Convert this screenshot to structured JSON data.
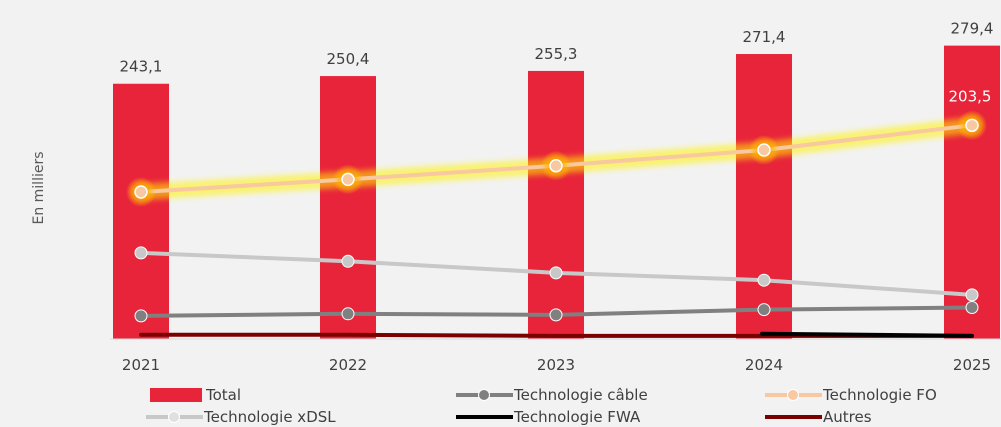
{
  "chart_data": {
    "type": "bar",
    "categories": [
      "2021",
      "2022",
      "2023",
      "2024",
      "2025"
    ],
    "ylabel": "En milliers",
    "ylim": [
      0,
      300
    ],
    "grid": false,
    "legend_position": "bottom",
    "bar_series": {
      "name": "Total",
      "values": [
        243.1,
        250.4,
        255.3,
        271.4,
        279.4
      ],
      "value_labels": [
        "243,1",
        "250,4",
        "255,3",
        "271,4",
        "279,4"
      ],
      "color": "#e8243a"
    },
    "line_series": [
      {
        "name": "Technologie câble",
        "values": [
          22,
          24,
          23,
          28,
          30
        ],
        "color": "#808080",
        "marker": true
      },
      {
        "name": "Technologie FO",
        "values": [
          140,
          152,
          165,
          180,
          203.5
        ],
        "color": "#f8c8a0",
        "marker": true,
        "glow": true,
        "last_value_label": "203,5"
      },
      {
        "name": "Technologie xDSL",
        "values": [
          82,
          74,
          63,
          56,
          42
        ],
        "color": "#c8c8c8",
        "marker": true
      },
      {
        "name": "Technologie FWA",
        "values": [
          null,
          null,
          null,
          5,
          3
        ],
        "color": "#000000",
        "marker": false
      },
      {
        "name": "Autres",
        "values": [
          4,
          4,
          3,
          3,
          3
        ],
        "color": "#7b0000",
        "marker": false
      }
    ]
  },
  "legend": {
    "items": [
      {
        "key": "total",
        "label": "Total"
      },
      {
        "key": "cable",
        "label": "Technologie câble"
      },
      {
        "key": "fo",
        "label": "Technologie FO"
      },
      {
        "key": "xdsl",
        "label": "Technologie xDSL"
      },
      {
        "key": "fwa",
        "label": "Technologie FWA"
      },
      {
        "key": "autres",
        "label": "Autres"
      }
    ]
  }
}
